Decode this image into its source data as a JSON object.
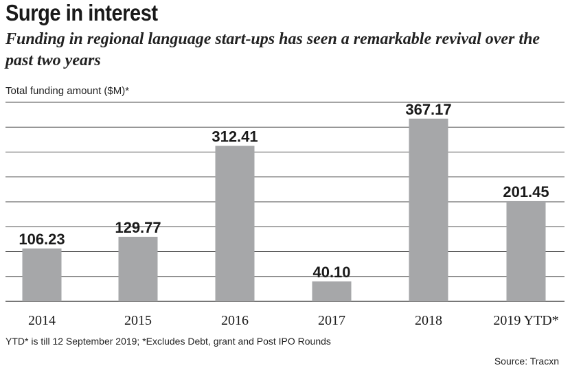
{
  "chart_data": {
    "type": "bar",
    "title": "Surge in interest",
    "subtitle": "Funding in regional language start-ups has seen a remarkable revival over the past two years",
    "ylabel": "Total funding amount ($M)*",
    "xlabel": "",
    "categories": [
      "2014",
      "2015",
      "2016",
      "2017",
      "2018",
      "2019 YTD*"
    ],
    "values": [
      106.23,
      129.77,
      312.41,
      40.1,
      367.17,
      201.45
    ],
    "value_labels": [
      "106.23",
      "129.77",
      "312.41",
      "40.10",
      "367.17",
      "201.45"
    ],
    "ylim": [
      0,
      400
    ],
    "grid": true,
    "gridline_step": 50,
    "legend": "none",
    "colors": {
      "bar": "#a6a7a9",
      "grid": "#4a4a4a",
      "text": "#1a1a1a"
    }
  },
  "footnote": "YTD* is till 12 September 2019; *Excludes Debt, grant and Post IPO Rounds",
  "source": "Source: Tracxn"
}
